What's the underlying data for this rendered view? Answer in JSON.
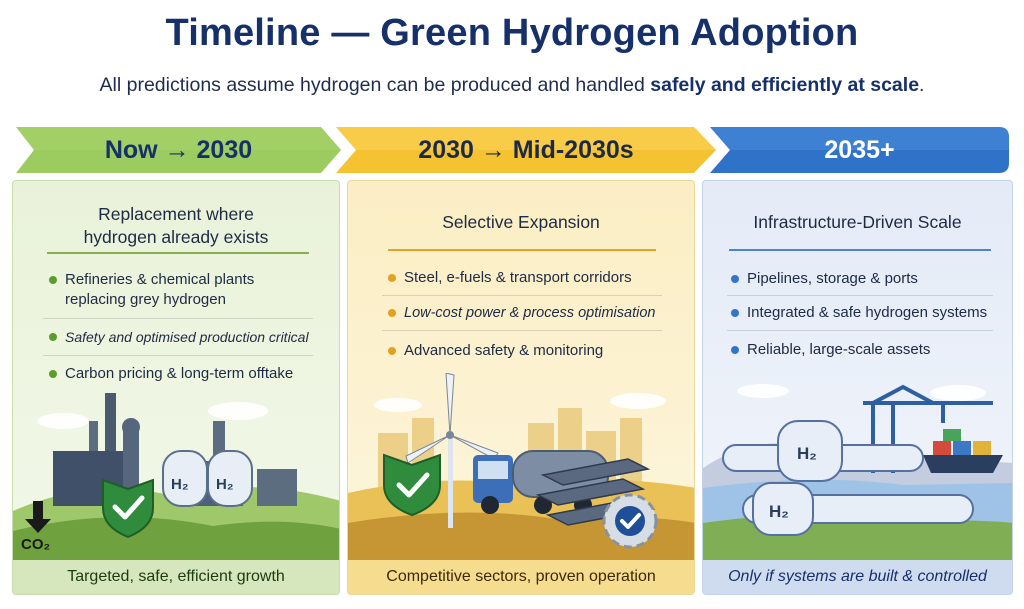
{
  "title": "Timeline — Green Hydrogen Adoption",
  "subtitle_prefix": "All predictions assume hydrogen can be produced and handled ",
  "subtitle_bold": "safely and efficiently at scale",
  "subtitle_suffix": ".",
  "colors": {
    "green": "#8cc152",
    "yellow": "#f6c63c",
    "blue": "#2f73c8",
    "navy": "#16306a"
  },
  "phases": [
    {
      "label": "Now → 2030",
      "heading_line1": "Replacement where",
      "heading_line2": "hydrogen already exists",
      "bullets": [
        "Refineries & chemical plants replacing grey hydrogen",
        "Safety and optimised production critical",
        "Carbon pricing & long-term offtake"
      ],
      "illustration_labels": [
        "H₂",
        "H₂",
        "CO₂"
      ],
      "footer": "Targeted, safe, efficient growth"
    },
    {
      "label": "2030 → Mid-2030s",
      "heading": "Selective Expansion",
      "bullets": [
        "Steel, e-fuels & transport corridors",
        "Low-cost power & process optimisation",
        "Advanced safety & monitoring"
      ],
      "footer": "Competitive sectors, proven operation"
    },
    {
      "label": "2035+",
      "heading": "Infrastructure-Driven Scale",
      "bullets": [
        "Pipelines, storage & ports",
        "Integrated & safe hydrogen systems",
        "Reliable, large-scale assets"
      ],
      "illustration_labels": [
        "H₂",
        "H₂"
      ],
      "footer": "Only if systems are built & controlled"
    }
  ]
}
